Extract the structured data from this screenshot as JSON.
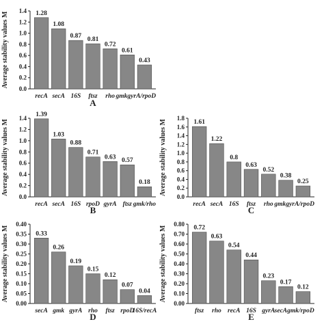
{
  "chart_data": [
    {
      "type": "bar",
      "panel_label": "A",
      "ylabel": "Average stability values M",
      "categories": [
        "recA",
        "secA",
        "16S",
        "ftsz",
        "rho",
        "gmkgyrA/rpoD",
        ""
      ],
      "values": [
        1.28,
        1.08,
        0.87,
        0.81,
        0.72,
        0.61,
        0.43
      ],
      "value_labels": [
        "1.28",
        "1.08",
        "0.87",
        "0.81",
        "0.72",
        "0.61",
        "0.43"
      ],
      "ylim": [
        0,
        1.4
      ],
      "yticks": [
        "0.0",
        "0.2",
        "0.4",
        "0.6",
        "0.8",
        "1.0",
        "1.2",
        "1.4"
      ]
    },
    {
      "type": "bar",
      "panel_label": "B",
      "ylabel": "Average stability values M",
      "categories": [
        "recA",
        "secA",
        "16S",
        "rpoD",
        "gyrA",
        "ftsz",
        "gmk/rho"
      ],
      "values": [
        1.39,
        1.03,
        0.88,
        0.71,
        0.63,
        0.57,
        0.18
      ],
      "value_labels": [
        "1.39",
        "1.03",
        "0.88",
        "0.71",
        "0.63",
        "0.57",
        "0.18"
      ],
      "ylim": [
        0,
        1.4
      ],
      "yticks": [
        "0.0",
        "0.2",
        "0.4",
        "0.6",
        "0.8",
        "1.0",
        "1.2",
        "1.4"
      ]
    },
    {
      "type": "bar",
      "panel_label": "C",
      "ylabel": "Average stability values M",
      "categories": [
        "recA",
        "secA",
        "16S",
        "ftsz",
        "rho",
        "gmkgyrA/rpoD",
        ""
      ],
      "values": [
        1.61,
        1.22,
        0.8,
        0.63,
        0.52,
        0.38,
        0.25
      ],
      "value_labels": [
        "1.61",
        "1.22",
        "0.8",
        "0.63",
        "0.52",
        "0.38",
        "0.25"
      ],
      "ylim": [
        0,
        1.8
      ],
      "yticks": [
        "0.0",
        "0.2",
        "0.4",
        "0.6",
        "0.8",
        "1.0",
        "1.2",
        "1.4",
        "1.6",
        "1.8"
      ]
    },
    {
      "type": "bar",
      "panel_label": "D",
      "ylabel": "Average stability values M",
      "categories": [
        "secA",
        "gmk",
        "gyrA",
        "rho",
        "ftsz",
        "rpoD",
        "16S/recA"
      ],
      "values": [
        0.33,
        0.26,
        0.19,
        0.15,
        0.12,
        0.07,
        0.04
      ],
      "value_labels": [
        "0.33",
        "0.26",
        "0.19",
        "0.15",
        "0.12",
        "0.07",
        "0.04"
      ],
      "ylim": [
        0,
        0.4
      ],
      "yticks": [
        "0.00",
        "0.05",
        "0.10",
        "0.15",
        "0.20",
        "0.25",
        "0.30",
        "0.35",
        "0.40"
      ]
    },
    {
      "type": "bar",
      "panel_label": "E",
      "ylabel": "Average stability values M",
      "categories": [
        "ftsz",
        "rho",
        "recA",
        "16S",
        "gyrA",
        "secAgmk/rpoD",
        ""
      ],
      "values": [
        0.72,
        0.63,
        0.54,
        0.44,
        0.23,
        0.17,
        0.12
      ],
      "value_labels": [
        "0.72",
        "0.63",
        "0.54",
        "0.44",
        "0.23",
        "0.17",
        "0.12"
      ],
      "ylim": [
        0,
        0.8
      ],
      "yticks": [
        "0.00",
        "0.10",
        "0.20",
        "0.30",
        "0.40",
        "0.50",
        "0.60",
        "0.70",
        "0.80"
      ]
    }
  ]
}
